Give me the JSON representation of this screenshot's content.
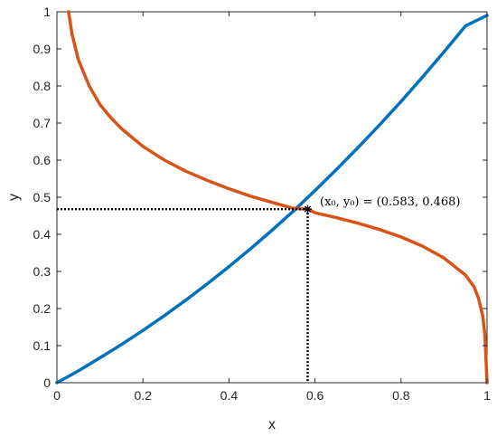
{
  "chart_data": {
    "type": "line",
    "xlabel": "x",
    "ylabel": "y",
    "xlim": [
      0,
      1
    ],
    "ylim": [
      0,
      1
    ],
    "grid": false,
    "box": true,
    "x_ticks": [
      0,
      0.2,
      0.4,
      0.6,
      0.8,
      1
    ],
    "x_tick_labels": [
      "0",
      "0.2",
      "0.4",
      "0.6",
      "0.8",
      "1"
    ],
    "y_ticks": [
      0,
      0.1,
      0.2,
      0.3,
      0.4,
      0.5,
      0.6,
      0.7,
      0.8,
      0.9,
      1
    ],
    "y_tick_labels": [
      "0",
      "0.1",
      "0.2",
      "0.3",
      "0.4",
      "0.5",
      "0.6",
      "0.7",
      "0.8",
      "0.9",
      "1"
    ],
    "series": [
      {
        "color": "#0072BD",
        "x": [
          0,
          0.05,
          0.1,
          0.15,
          0.2,
          0.25,
          0.3,
          0.35,
          0.4,
          0.45,
          0.5,
          0.55,
          0.6,
          0.65,
          0.7,
          0.75,
          0.8,
          0.85,
          0.9,
          0.95,
          1
        ],
        "y": [
          0,
          0.032,
          0.067,
          0.103,
          0.141,
          0.181,
          0.223,
          0.267,
          0.313,
          0.361,
          0.411,
          0.463,
          0.518,
          0.575,
          0.634,
          0.695,
          0.758,
          0.824,
          0.892,
          0.962,
          0.99
        ]
      },
      {
        "color": "#D95319",
        "x": [
          0.027,
          0.035,
          0.05,
          0.075,
          0.1,
          0.125,
          0.15,
          0.2,
          0.25,
          0.3,
          0.35,
          0.4,
          0.45,
          0.5,
          0.55,
          0.583,
          0.6,
          0.65,
          0.7,
          0.75,
          0.8,
          0.85,
          0.9,
          0.95,
          0.97,
          0.98,
          0.99,
          0.995,
          1
        ],
        "y": [
          1.0,
          0.94,
          0.87,
          0.8,
          0.75,
          0.715,
          0.685,
          0.637,
          0.6,
          0.57,
          0.545,
          0.523,
          0.503,
          0.486,
          0.47,
          0.468,
          0.458,
          0.445,
          0.43,
          0.413,
          0.393,
          0.368,
          0.336,
          0.29,
          0.258,
          0.228,
          0.18,
          0.13,
          0.0
        ]
      }
    ],
    "marker": {
      "x": 0.583,
      "y": 0.468,
      "symbol": "*"
    },
    "annotation": "(x₀, y₀) = (0.583, 0.468)",
    "guide_lines": {
      "style": "dotted",
      "color": "#000000"
    }
  }
}
